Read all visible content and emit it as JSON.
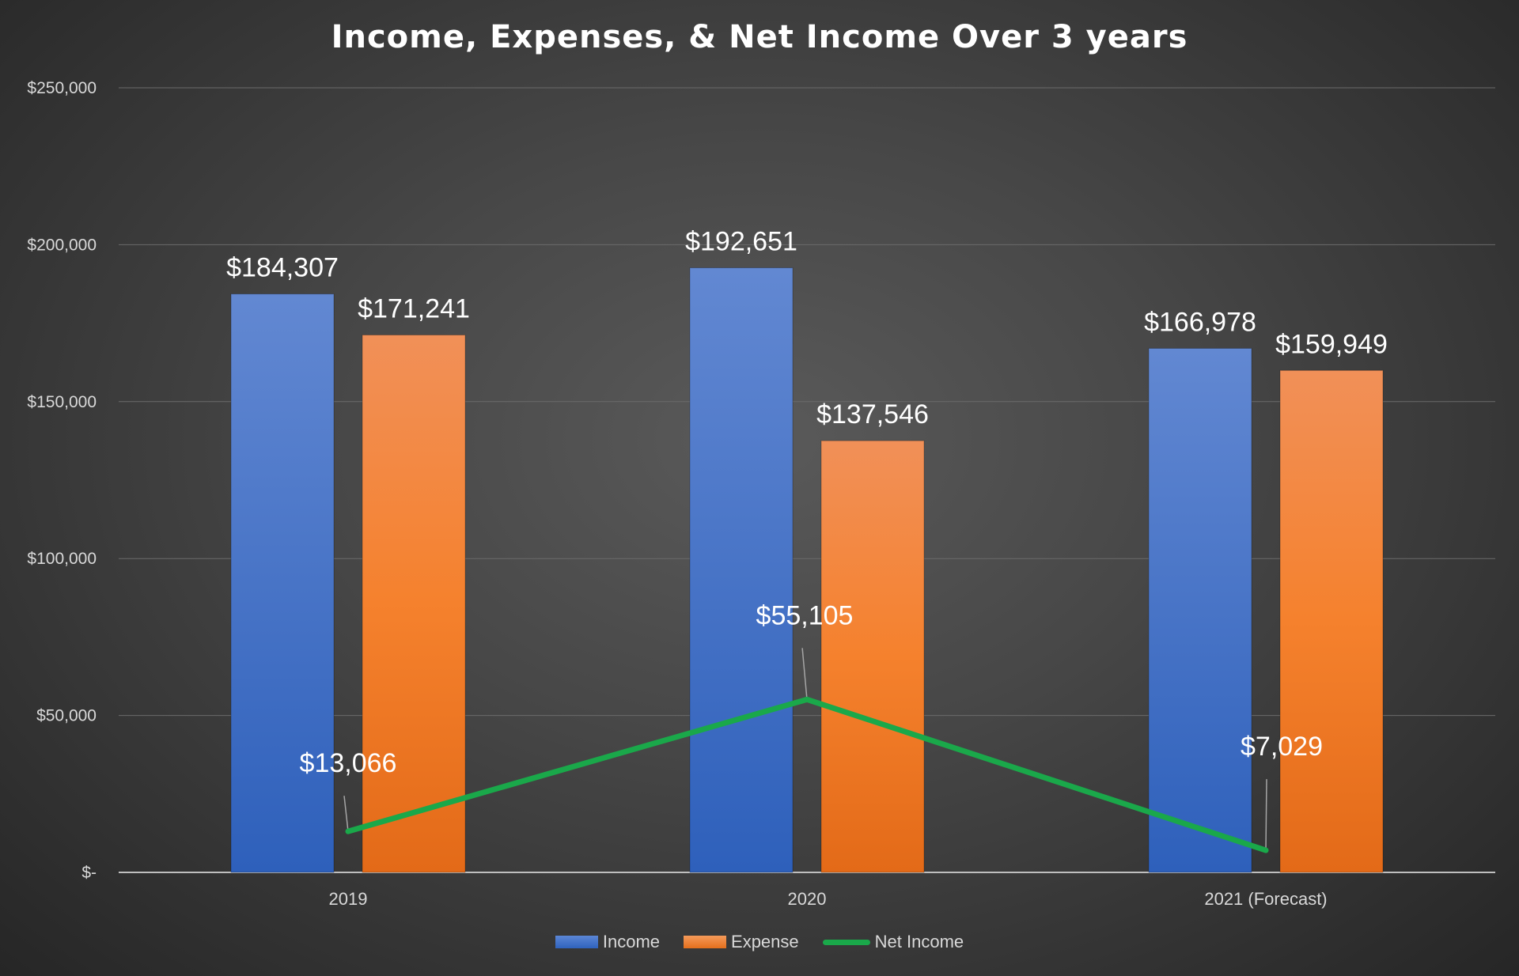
{
  "chart_data": {
    "type": "bar",
    "title": "Income, Expenses, & Net Income Over 3 years",
    "categories": [
      "2019",
      "2020",
      "2021 (Forecast)"
    ],
    "series": [
      {
        "name": "Income",
        "kind": "bar",
        "color": "#4472C4",
        "values": [
          184307,
          192651,
          166978
        ],
        "labels": [
          "$184,307",
          "$192,651",
          "$166,978"
        ]
      },
      {
        "name": "Expense",
        "kind": "bar",
        "color": "#ED7D31",
        "values": [
          171241,
          137546,
          159949
        ],
        "labels": [
          "$171,241",
          "$137,546",
          "$159,949"
        ]
      },
      {
        "name": "Net Income",
        "kind": "line",
        "color": "#1AA84A",
        "values": [
          13066,
          55105,
          7029
        ],
        "labels": [
          "$13,066",
          "$55,105",
          "$7,029"
        ]
      }
    ],
    "ylim": [
      0,
      250000
    ],
    "yticks": [
      0,
      50000,
      100000,
      150000,
      200000,
      250000
    ],
    "ytick_labels": [
      "$-",
      "$50,000",
      "$100,000",
      "$150,000",
      "$200,000",
      "$250,000"
    ],
    "grid": true,
    "legend_position": "bottom"
  }
}
